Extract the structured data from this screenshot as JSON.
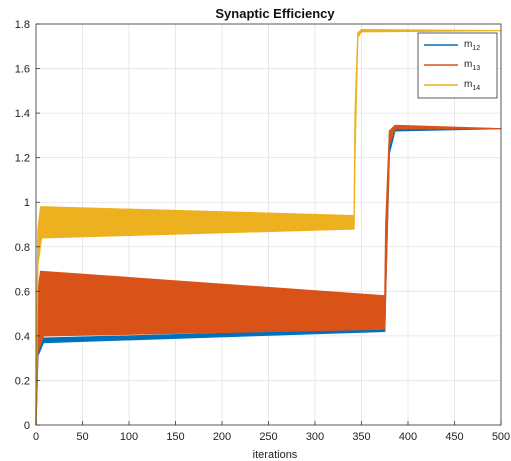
{
  "chart_data": {
    "type": "line",
    "title": "Synaptic Efficiency",
    "xlabel": "iterations",
    "ylabel": "",
    "xlim": [
      0,
      500
    ],
    "ylim": [
      0,
      1.8
    ],
    "xticks": [
      0,
      50,
      100,
      150,
      200,
      250,
      300,
      350,
      400,
      450,
      500
    ],
    "yticks": [
      0,
      0.2,
      0.4,
      0.6,
      0.8,
      1,
      1.2,
      1.4,
      1.6,
      1.8
    ],
    "xtick_labels": [
      "0",
      "50",
      "100",
      "150",
      "200",
      "250",
      "300",
      "350",
      "400",
      "450",
      "500"
    ],
    "ytick_labels": [
      "0",
      "0.2",
      "0.4",
      "0.6",
      "0.8",
      "1",
      "1.2",
      "1.4",
      "1.6",
      "1.8"
    ],
    "grid": true,
    "legend_position": "top-right",
    "series": [
      {
        "name": "m12",
        "label_main": "m",
        "label_sub": "12",
        "color": "#0072BD",
        "upper": [
          [
            0,
            0.02
          ],
          [
            2,
            0.38
          ],
          [
            8,
            0.39
          ],
          [
            375,
            0.43
          ],
          [
            376,
            0.8
          ],
          [
            380,
            1.3
          ],
          [
            386,
            1.34
          ],
          [
            500,
            1.33
          ]
        ],
        "lower": [
          [
            0,
            0.0
          ],
          [
            2,
            0.31
          ],
          [
            8,
            0.37
          ],
          [
            375,
            0.42
          ],
          [
            376,
            0.6
          ],
          [
            380,
            1.22
          ],
          [
            386,
            1.32
          ],
          [
            500,
            1.33
          ]
        ]
      },
      {
        "name": "m13",
        "label_main": "m",
        "label_sub": "13",
        "color": "#D95319",
        "upper": [
          [
            0,
            0.05
          ],
          [
            2,
            0.6
          ],
          [
            5,
            0.69
          ],
          [
            375,
            0.58
          ],
          [
            376,
            0.9
          ],
          [
            380,
            1.32
          ],
          [
            386,
            1.345
          ],
          [
            500,
            1.33
          ]
        ],
        "lower": [
          [
            0,
            0.0
          ],
          [
            2,
            0.33
          ],
          [
            8,
            0.4
          ],
          [
            375,
            0.43
          ],
          [
            376,
            0.6
          ],
          [
            380,
            1.26
          ],
          [
            386,
            1.33
          ],
          [
            500,
            1.33
          ]
        ]
      },
      {
        "name": "m14",
        "label_main": "m",
        "label_sub": "14",
        "color": "#EDB120",
        "upper": [
          [
            0,
            0.1
          ],
          [
            2,
            0.88
          ],
          [
            5,
            0.98
          ],
          [
            342,
            0.94
          ],
          [
            343,
            1.4
          ],
          [
            346,
            1.76
          ],
          [
            350,
            1.775
          ],
          [
            500,
            1.77
          ]
        ],
        "lower": [
          [
            0,
            0.0
          ],
          [
            2,
            0.72
          ],
          [
            6,
            0.84
          ],
          [
            342,
            0.88
          ],
          [
            343,
            1.2
          ],
          [
            346,
            1.74
          ],
          [
            350,
            1.765
          ],
          [
            500,
            1.77
          ]
        ]
      }
    ]
  }
}
